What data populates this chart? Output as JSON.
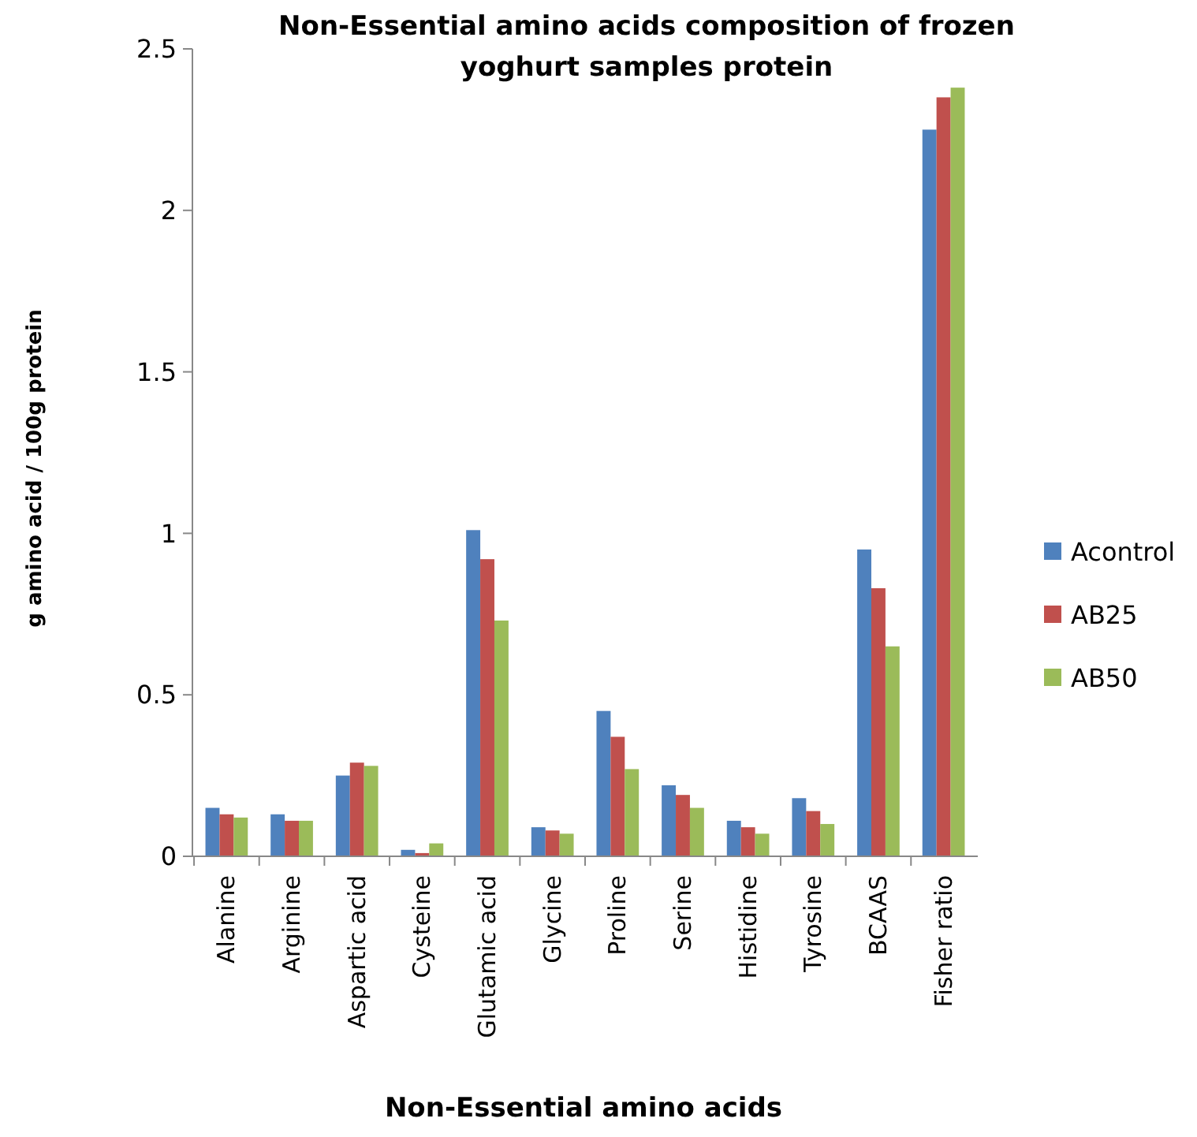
{
  "chart_data": {
    "type": "bar",
    "title": "Non-Essential amino acids composition of frozen yoghurt samples protein",
    "xlabel": "Non-Essential amino acids",
    "ylabel": "g amino acid / 100g protein",
    "categories": [
      "Alanine",
      "Arginine",
      "Aspartic acid",
      "Cysteine",
      "Glutamic acid",
      "Glycine",
      "Proline",
      "Serine",
      "Histidine",
      "Tyrosine",
      "BCAAS",
      "Fisher ratio"
    ],
    "series": [
      {
        "name": "Acontrol",
        "color": "#4f81bd",
        "values": [
          0.15,
          0.13,
          0.25,
          0.02,
          1.01,
          0.09,
          0.45,
          0.22,
          0.11,
          0.18,
          0.95,
          2.25
        ]
      },
      {
        "name": "AB25",
        "color": "#c0504d",
        "values": [
          0.13,
          0.11,
          0.29,
          0.01,
          0.92,
          0.08,
          0.37,
          0.19,
          0.09,
          0.14,
          0.83,
          2.35
        ]
      },
      {
        "name": "AB50",
        "color": "#9bbb59",
        "values": [
          0.12,
          0.11,
          0.28,
          0.04,
          0.73,
          0.07,
          0.27,
          0.15,
          0.07,
          0.1,
          0.65,
          2.38
        ]
      }
    ],
    "ylim": [
      0,
      2.5
    ],
    "yticks": [
      0,
      0.5,
      1,
      1.5,
      2,
      2.5
    ],
    "grid": false,
    "legend": "right"
  }
}
